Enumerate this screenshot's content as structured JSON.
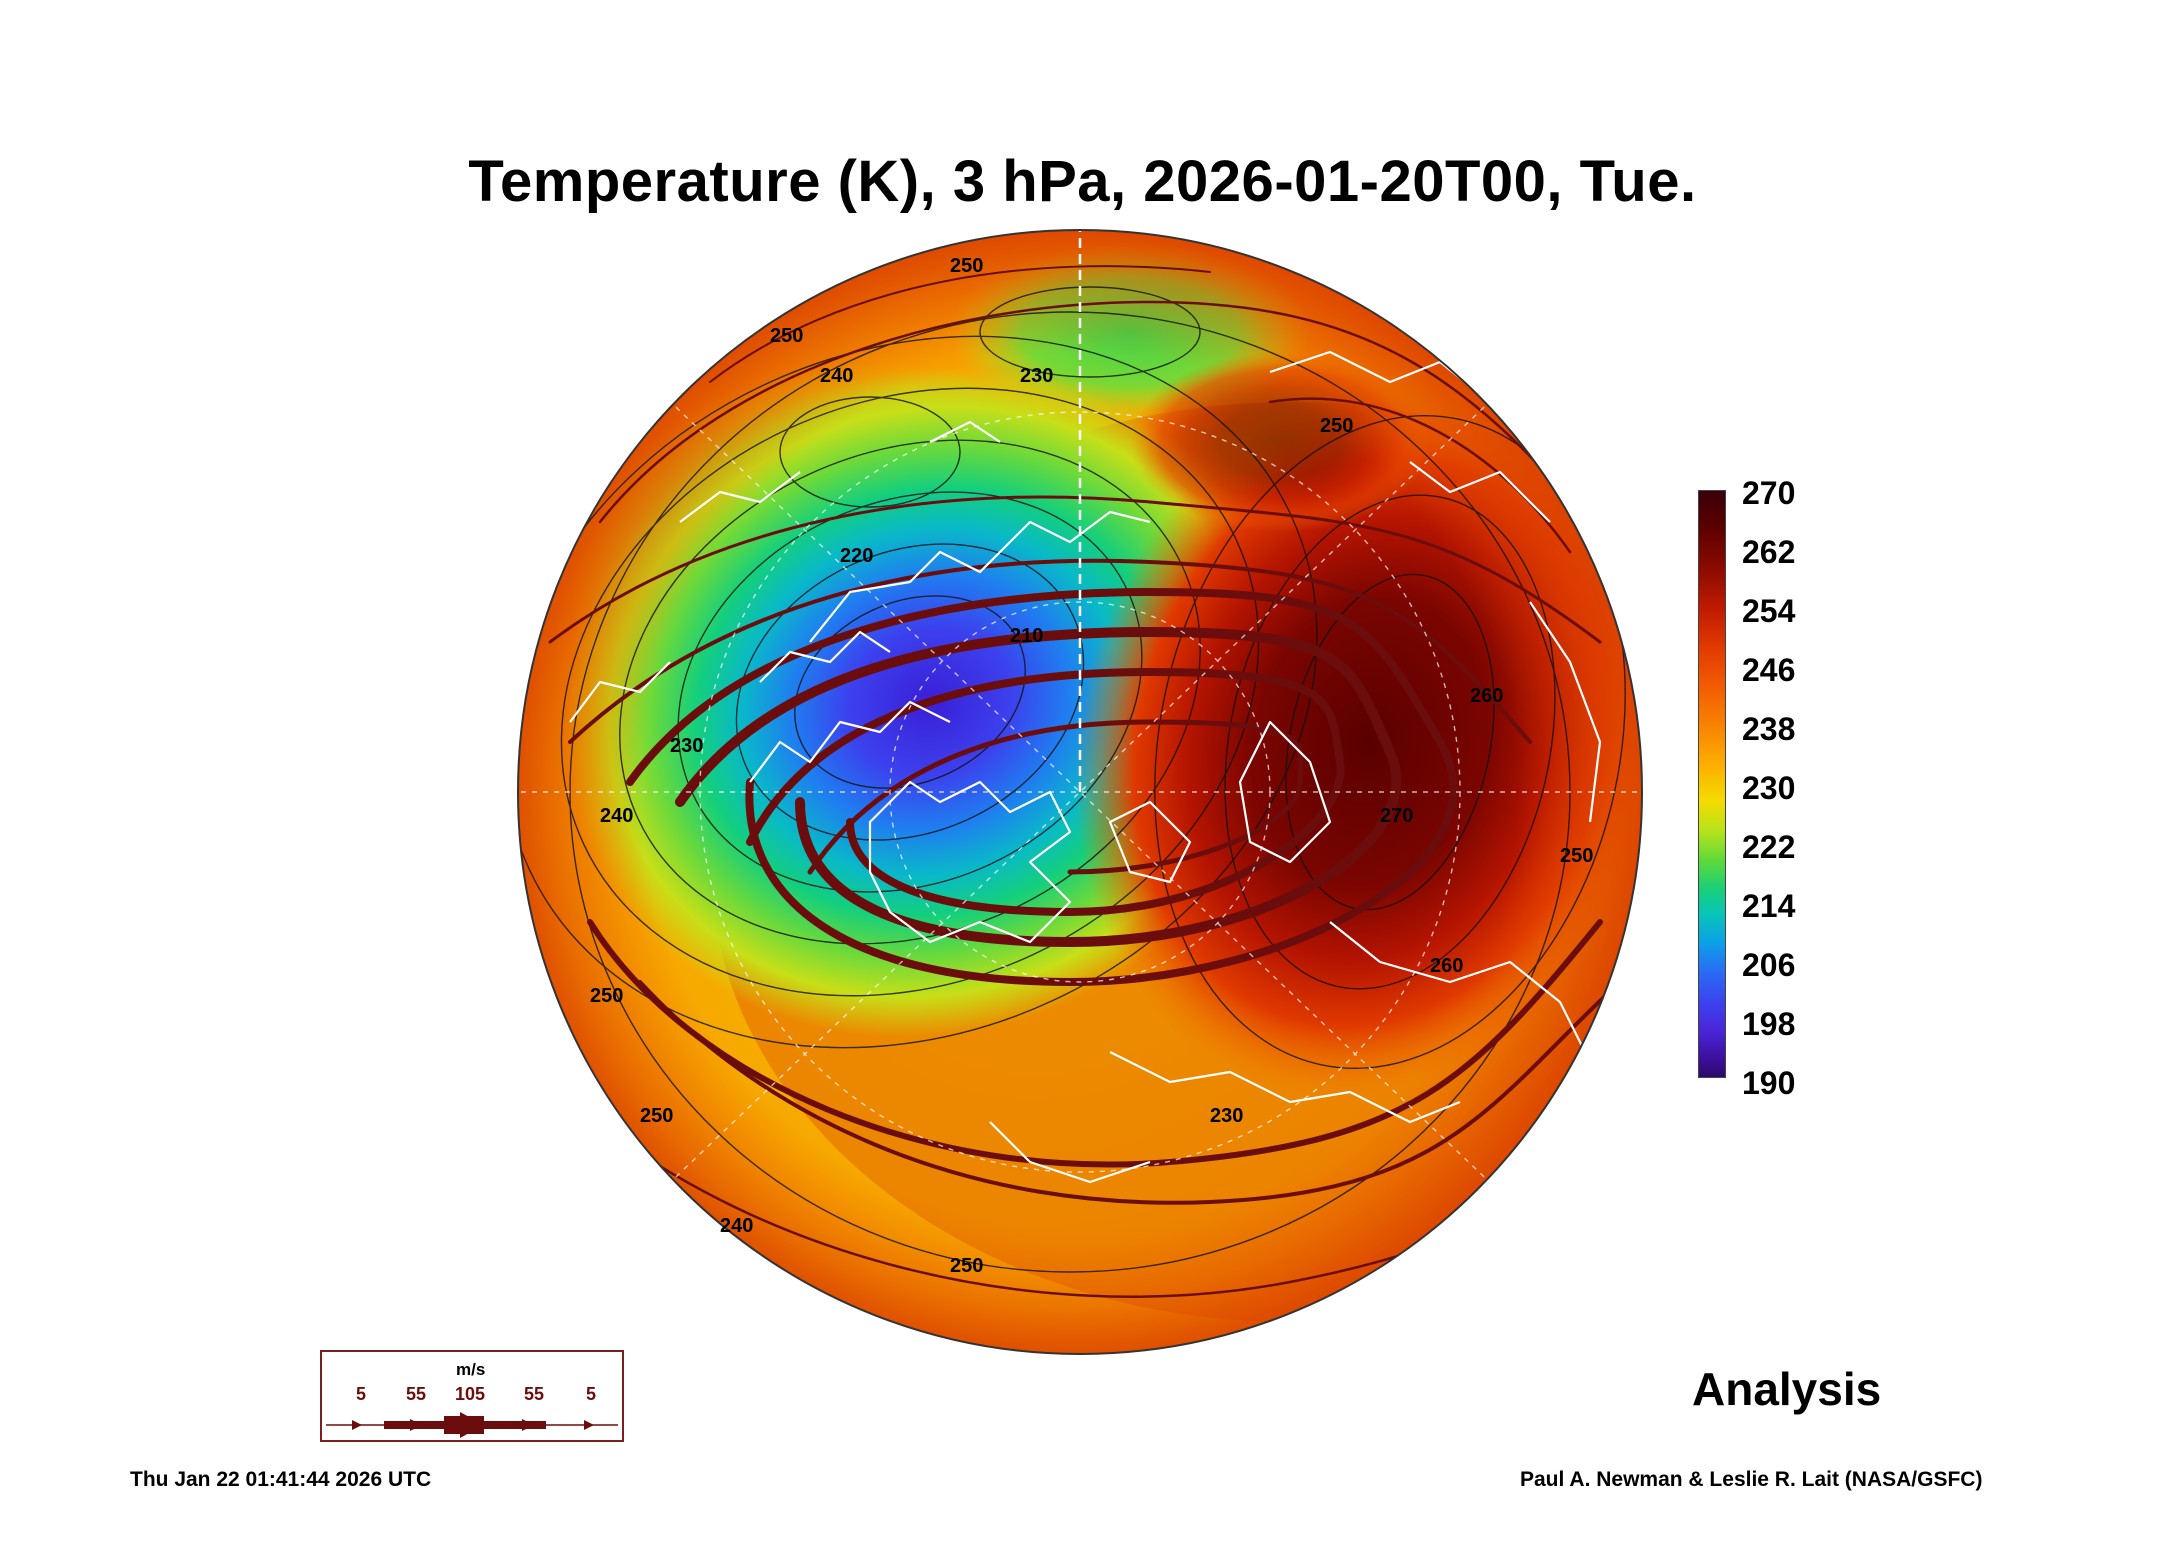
{
  "title": "Temperature (K), 3 hPa, 2026-01-20T00, Tue.",
  "colorbar": {
    "labels": [
      "270",
      "262",
      "254",
      "246",
      "238",
      "230",
      "222",
      "214",
      "206",
      "198",
      "190"
    ]
  },
  "contour_labels": [
    "250",
    "250",
    "240",
    "230",
    "250",
    "220",
    "210",
    "230",
    "240",
    "250",
    "250",
    "240",
    "250",
    "230",
    "260",
    "270",
    "260",
    "250"
  ],
  "wind_legend": {
    "unit": "m/s",
    "speeds": [
      "5",
      "55",
      "105",
      "55",
      "5"
    ]
  },
  "analysis_label": "Analysis",
  "timestamp": "Thu Jan 22 01:41:44 2026 UTC",
  "credit": "Paul A. Newman & Leslie R. Lait (NASA/GSFC)",
  "colors": {
    "coast": "#ffffff",
    "streamline": "#6b0d0d",
    "contour": "#000000"
  }
}
